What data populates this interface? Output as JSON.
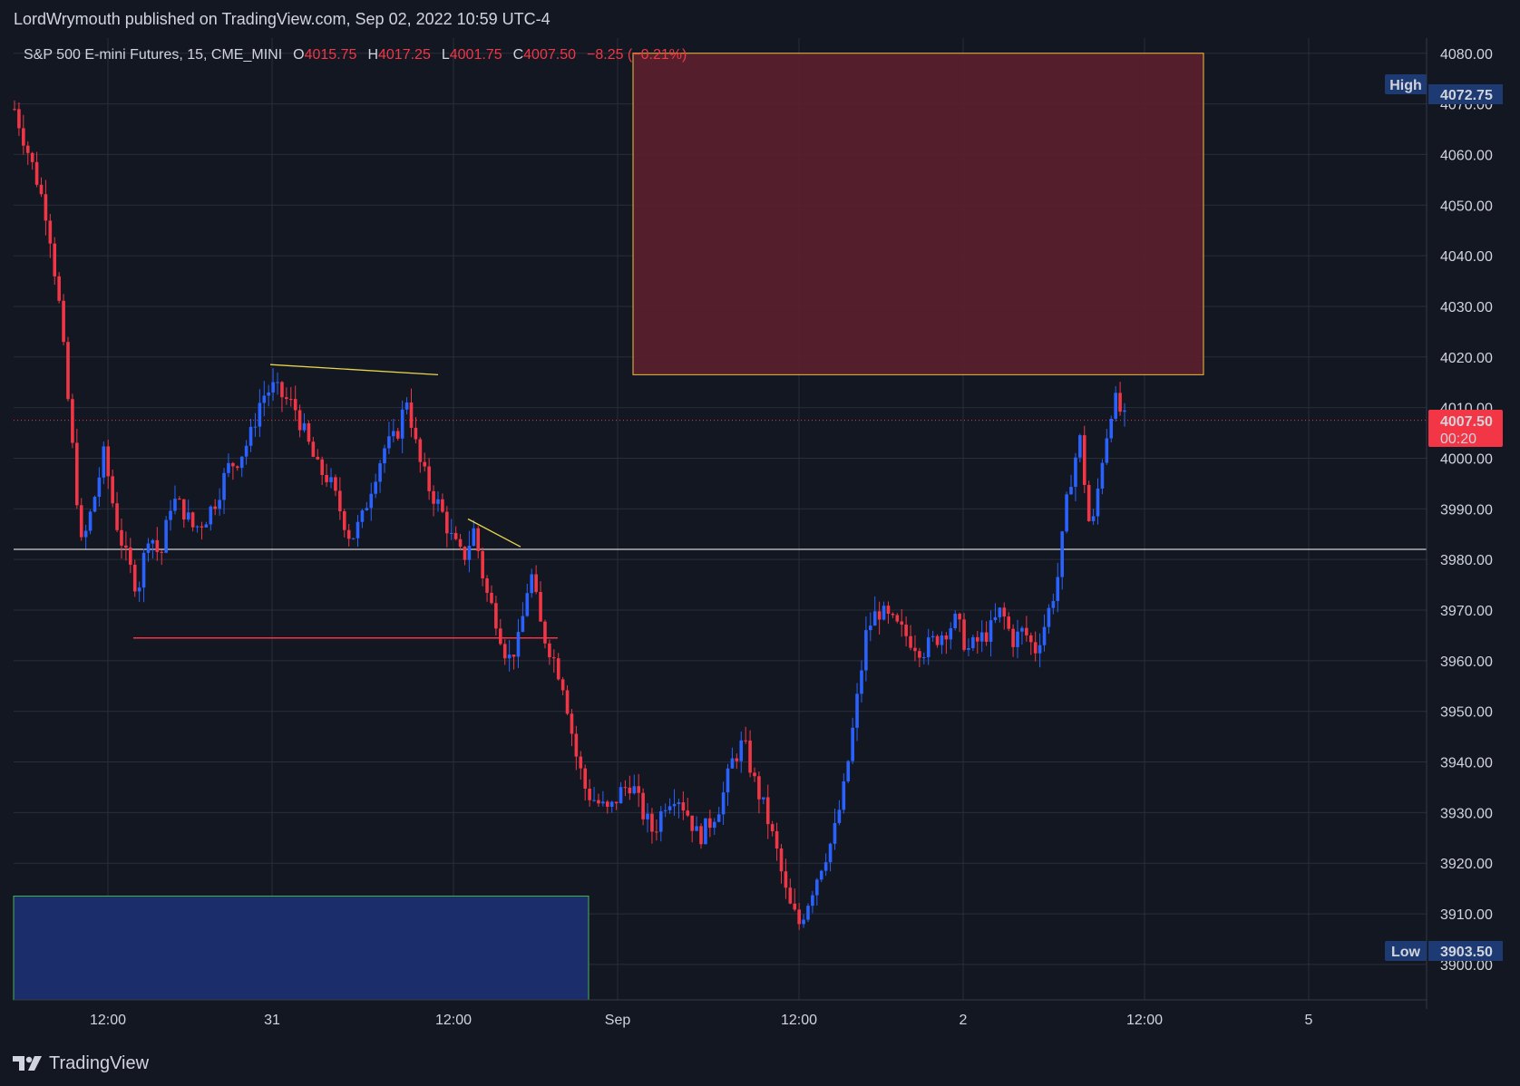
{
  "header": {
    "published_line": "LordWrymouth published on TradingView.com, Sep 02, 2022 10:59 UTC-4"
  },
  "legend": {
    "symbol": "S&P 500 E-mini Futures, 15, CME_MINI",
    "open_key": "O",
    "open": "4015.75",
    "high_key": "H",
    "high": "4017.25",
    "low_key": "L",
    "low": "4001.75",
    "close_key": "C",
    "close": "4007.50",
    "change": "−8.25 (−0.21%)"
  },
  "price_axis": {
    "ticks": [
      "4080.00",
      "4070.00",
      "4060.00",
      "4050.00",
      "4040.00",
      "4030.00",
      "4020.00",
      "4010.00",
      "4000.00",
      "3990.00",
      "3980.00",
      "3970.00",
      "3960.00",
      "3950.00",
      "3940.00",
      "3930.00",
      "3920.00",
      "3910.00",
      "3900.00"
    ],
    "high_label": "High",
    "high_value": "4072.75",
    "low_label": "Low",
    "low_value": "3903.50",
    "last_price": "4007.50",
    "countdown": "00:20"
  },
  "time_axis": {
    "ticks": [
      "12:00",
      "31",
      "12:00",
      "Sep",
      "12:00",
      "2",
      "12:00",
      "5"
    ]
  },
  "footer": {
    "brand": "TradingView"
  },
  "colors": {
    "background": "#131722",
    "up": "#2962ff",
    "down": "#f23645",
    "supply_zone": "#5c1f2e",
    "demand_zone": "#1c2d6b",
    "trendline": "#e8d44d"
  },
  "chart_data": {
    "type": "candlestick",
    "ylim": [
      3893,
      4083
    ],
    "key_levels": {
      "white_horizontal": 3982,
      "red_support": 3964.5,
      "last_price": 4007.5
    },
    "zones": [
      {
        "name": "supply",
        "from": 4016.5,
        "to": 4080
      },
      {
        "name": "demand",
        "from": 3893,
        "to": 3913.5
      }
    ],
    "close_path": [
      4069,
      4062,
      4055,
      4047,
      4030,
      4006,
      3982,
      3991,
      4001,
      3988,
      3980,
      3974,
      3986,
      3980,
      3992,
      3990,
      3986,
      3988,
      3992,
      3998,
      4000,
      4004,
      4012,
      4014,
      4012,
      4010,
      4004,
      3998,
      3996,
      3990,
      3984,
      3988,
      3996,
      4002,
      4004,
      4012,
      4000,
      3994,
      3990,
      3984,
      3980,
      3986,
      3974,
      3968,
      3960,
      3964,
      3978,
      3966,
      3961,
      3955,
      3942,
      3934,
      3932,
      3930,
      3934,
      3936,
      3930,
      3926,
      3932,
      3934,
      3930,
      3925,
      3928,
      3932,
      3940,
      3944,
      3936,
      3930,
      3922,
      3912,
      3908,
      3914,
      3920,
      3925,
      3935,
      3950,
      3966,
      3970,
      3968,
      3966,
      3964,
      3962,
      3964,
      3966,
      3968,
      3962,
      3964,
      3966,
      3970,
      3964,
      3966,
      3962,
      3968,
      3976,
      3994,
      4004,
      3984,
      4000,
      4012,
      4007.5
    ],
    "high": 4072.75,
    "low": 3903.5
  }
}
